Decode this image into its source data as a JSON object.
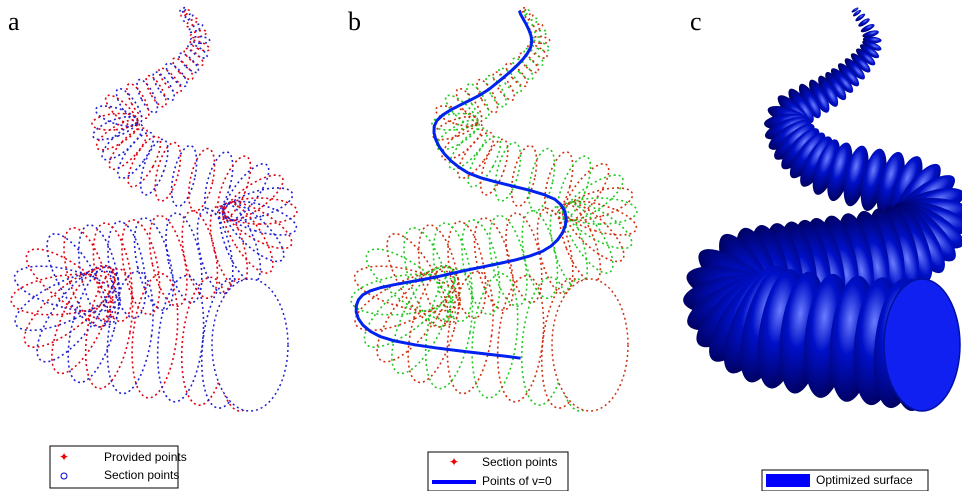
{
  "panels": [
    {
      "label": "a",
      "legend": [
        "Provided points",
        "Section points"
      ]
    },
    {
      "label": "b",
      "legend": [
        "Section points",
        "Points of v=0"
      ]
    },
    {
      "label": "c",
      "legend": [
        "Optimized surface"
      ]
    }
  ]
}
